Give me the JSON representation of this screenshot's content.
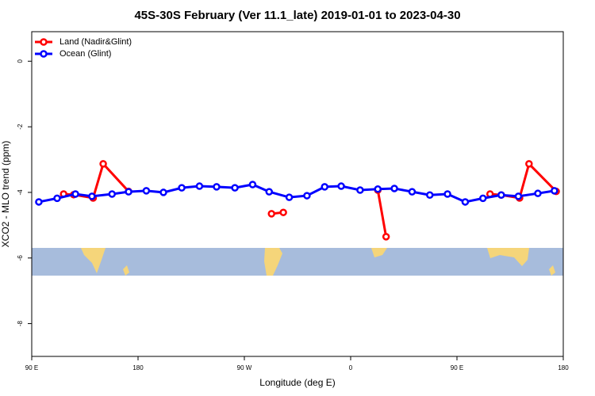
{
  "chart_data": {
    "type": "line",
    "title": "45S-30S February (Ver 11.1_late)   2019-01-01 to 2023-04-30",
    "x_label": "Longitude (deg E)",
    "y_label": "XCO2 - MLO trend (ppm)",
    "xlim": [
      90,
      540
    ],
    "ylim": [
      -9,
      0.9
    ],
    "xticks": [
      {
        "value": 90,
        "label": "90 E"
      },
      180,
      {
        "value": 270,
        "label": "90 W"
      },
      {
        "value": 360,
        "label": "0"
      },
      {
        "value": 450,
        "label": "90 E"
      },
      {
        "value": 540,
        "label": "180"
      }
    ],
    "yticks": [
      -8,
      -6,
      -4,
      -2,
      0
    ],
    "legend": "topleft",
    "series": [
      {
        "name": "Land (Nadir&Glint)",
        "color": "#ff0000",
        "x": [
          117,
          125.5,
          142,
          150.5,
          172,
          null,
          293,
          303,
          null,
          383,
          390,
          null,
          478,
          487.5,
          503,
          511,
          534
        ],
        "values": [
          -4.05,
          -4.07,
          -4.17,
          -3.13,
          -3.97,
          null,
          -4.65,
          -4.61,
          null,
          -3.93,
          -5.35,
          null,
          -4.05,
          -4.08,
          -4.17,
          -3.13,
          -3.97
        ]
      },
      {
        "name": "Ocean (Glint)",
        "color": "#0000ff",
        "x": [
          96,
          111.5,
          127,
          141,
          158,
          172,
          187,
          201.5,
          217,
          232,
          246.5,
          262,
          277,
          291,
          308,
          323,
          338,
          352,
          368,
          383,
          397,
          412,
          427,
          442,
          457,
          472,
          487.5,
          502,
          518.5,
          532.5
        ],
        "values": [
          -4.29,
          -4.18,
          -4.05,
          -4.12,
          -4.05,
          -3.98,
          -3.95,
          -4.0,
          -3.86,
          -3.81,
          -3.83,
          -3.86,
          -3.76,
          -3.98,
          -4.15,
          -4.1,
          -3.83,
          -3.81,
          -3.93,
          -3.9,
          -3.88,
          -3.98,
          -4.08,
          -4.05,
          -4.29,
          -4.18,
          -4.08,
          -4.12,
          -4.03,
          -3.95
        ]
      }
    ]
  }
}
